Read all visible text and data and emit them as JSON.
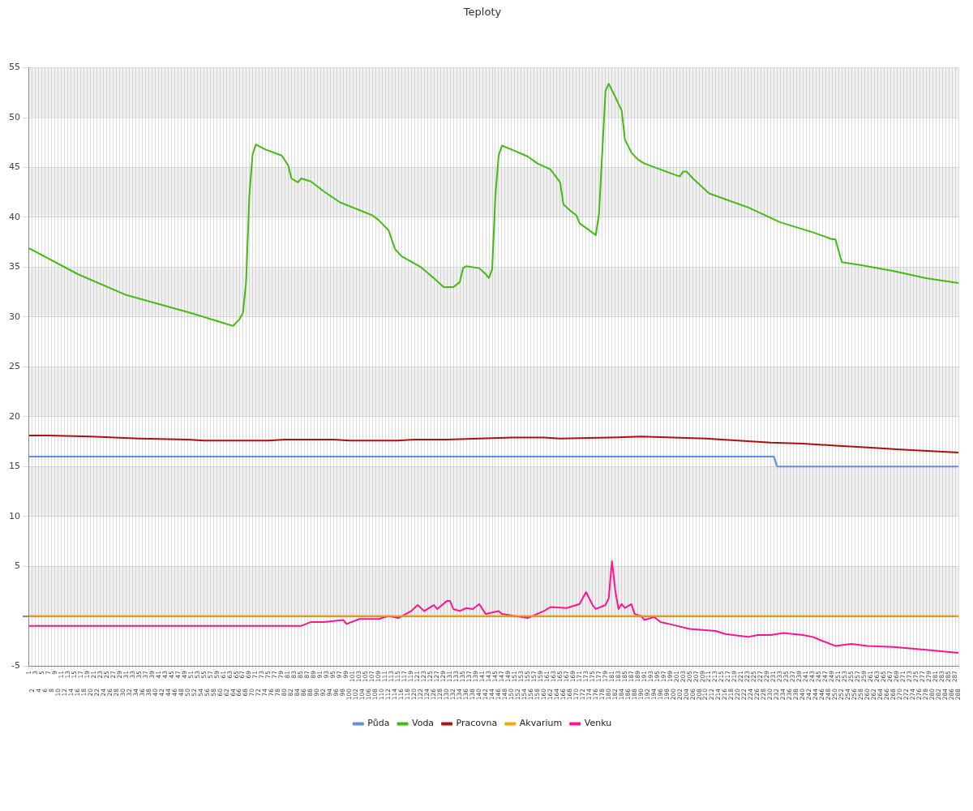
{
  "chart_data": {
    "type": "line",
    "title": "Teploty",
    "categories": [
      "1",
      "2",
      "3",
      "4",
      "5",
      "6",
      "7",
      "8",
      "9",
      "10",
      "11",
      "12",
      "13",
      "14",
      "15",
      "16",
      "17",
      "18",
      "19",
      "20",
      "21",
      "22",
      "23",
      "24",
      "25",
      "26",
      "27",
      "28",
      "29",
      "30",
      "31",
      "32",
      "33",
      "34",
      "35",
      "36",
      "37",
      "38",
      "39",
      "40",
      "41",
      "42",
      "43",
      "44",
      "45",
      "46",
      "47",
      "48",
      "49",
      "50",
      "51",
      "52",
      "53",
      "54",
      "55",
      "56",
      "57",
      "58",
      "59",
      "60",
      "61",
      "62",
      "63",
      "64",
      "65",
      "66",
      "67",
      "68",
      "69",
      "70",
      "71",
      "72",
      "73",
      "74",
      "75",
      "76",
      "77",
      "78",
      "79",
      "80",
      "81",
      "82",
      "83",
      "84",
      "85",
      "86",
      "87",
      "88",
      "89",
      "90",
      "91",
      "92",
      "93",
      "94",
      "95",
      "96",
      "97",
      "98",
      "99",
      "100",
      "101",
      "102",
      "103",
      "104",
      "105",
      "106",
      "107",
      "108",
      "109",
      "110",
      "111",
      "112",
      "113",
      "114",
      "115",
      "116",
      "117",
      "118",
      "119",
      "120",
      "121",
      "122",
      "123",
      "124",
      "125",
      "126",
      "127",
      "128",
      "129",
      "130",
      "131",
      "132",
      "133",
      "134",
      "135",
      "136",
      "137",
      "138",
      "139",
      "140",
      "141",
      "142",
      "143",
      "144",
      "145",
      "146",
      "147",
      "148",
      "149",
      "150",
      "151",
      "152",
      "153",
      "154",
      "155",
      "156",
      "157",
      "158",
      "159",
      "160",
      "161",
      "162",
      "163",
      "164",
      "165",
      "166",
      "167",
      "168",
      "169",
      "170",
      "171",
      "172",
      "173",
      "174",
      "175",
      "176",
      "177",
      "178",
      "179",
      "180",
      "181",
      "182",
      "183",
      "184",
      "185",
      "186",
      "187",
      "188",
      "189",
      "190",
      "191",
      "192",
      "193",
      "194",
      "195",
      "196",
      "197",
      "198",
      "199",
      "200",
      "201",
      "202",
      "203",
      "204",
      "205",
      "206",
      "207",
      "208",
      "209",
      "210",
      "211",
      "212",
      "213",
      "214",
      "215",
      "216",
      "217",
      "218",
      "219",
      "220",
      "221",
      "222",
      "223",
      "224",
      "225",
      "226",
      "227",
      "228",
      "229",
      "230",
      "231",
      "232",
      "233",
      "234",
      "235",
      "236",
      "237",
      "238",
      "239",
      "240",
      "241",
      "242",
      "243",
      "244",
      "245",
      "246",
      "247",
      "248",
      "249",
      "250",
      "251",
      "252",
      "253",
      "254",
      "255",
      "256",
      "257",
      "258",
      "259",
      "260",
      "261",
      "262",
      "263",
      "264",
      "265",
      "266",
      "267",
      "268",
      "269",
      "270",
      "271",
      "272",
      "273",
      "274",
      "275",
      "276",
      "277",
      "278",
      "279",
      "280",
      "281",
      "282",
      "283",
      "284",
      "285",
      "286",
      "287",
      "288"
    ],
    "series": [
      {
        "name": "Půda",
        "color": "#5b8fe0",
        "x": [
          "1",
          "231",
          "232",
          "288"
        ],
        "values": [
          16,
          16,
          15,
          15
        ]
      },
      {
        "name": "Voda",
        "color": "#44bb11",
        "x": [
          "1",
          "16",
          "31",
          "51",
          "62",
          "64",
          "66",
          "67",
          "68",
          "69",
          "70",
          "71",
          "74",
          "79",
          "81",
          "82",
          "84",
          "85",
          "88",
          "92",
          "97",
          "107",
          "109",
          "112",
          "114",
          "116",
          "122",
          "126",
          "129",
          "132",
          "134",
          "135",
          "136",
          "140",
          "142",
          "143",
          "144",
          "145",
          "146",
          "147",
          "150",
          "155",
          "158",
          "162",
          "165",
          "166",
          "168",
          "170",
          "171",
          "174",
          "176",
          "177",
          "178",
          "179",
          "180",
          "182",
          "184",
          "185",
          "187",
          "189",
          "191",
          "201",
          "202",
          "203",
          "204",
          "206",
          "211",
          "223",
          "233",
          "243",
          "249",
          "250",
          "252",
          "258",
          "268",
          "278",
          "288"
        ],
        "values": [
          36.9,
          34.3,
          32.2,
          30.4,
          29.3,
          29.1,
          29.8,
          30.4,
          33.5,
          42.2,
          46.3,
          47.3,
          46.8,
          46.2,
          45.2,
          43.9,
          43.5,
          43.9,
          43.6,
          42.6,
          41.5,
          40.2,
          39.7,
          38.7,
          36.8,
          36.1,
          35.0,
          33.9,
          33.0,
          33.0,
          33.5,
          34.9,
          35.1,
          34.9,
          34.3,
          33.9,
          34.8,
          42.2,
          46.2,
          47.2,
          46.8,
          46.1,
          45.4,
          44.8,
          43.5,
          41.3,
          40.7,
          40.2,
          39.4,
          38.7,
          38.2,
          40.4,
          46.5,
          52.7,
          53.4,
          52.1,
          50.7,
          47.8,
          46.5,
          45.8,
          45.4,
          44.2,
          44.1,
          44.6,
          44.6,
          43.9,
          42.4,
          41.0,
          39.5,
          38.5,
          37.8,
          37.8,
          35.5,
          35.2,
          34.6,
          33.9,
          33.4
        ]
      },
      {
        "name": "Pracovna",
        "color": "#aa1111",
        "x": [
          "1",
          "7",
          "20",
          "35",
          "50",
          "55",
          "75",
          "80",
          "95",
          "100",
          "115",
          "120",
          "130",
          "140",
          "150",
          "160",
          "165",
          "180",
          "190",
          "200",
          "210",
          "220",
          "230",
          "240",
          "250",
          "260",
          "270",
          "288"
        ],
        "values": [
          18.1,
          18.1,
          18.0,
          17.8,
          17.7,
          17.6,
          17.6,
          17.7,
          17.7,
          17.6,
          17.6,
          17.7,
          17.7,
          17.8,
          17.9,
          17.9,
          17.8,
          17.9,
          18.0,
          17.9,
          17.8,
          17.6,
          17.4,
          17.3,
          17.1,
          16.9,
          16.7,
          16.4
        ]
      },
      {
        "name": "Akvarium",
        "color": "#ffa500",
        "x": [
          "1",
          "288"
        ],
        "values": [
          0,
          0
        ]
      },
      {
        "name": "Venku",
        "color": "#ff1493",
        "x": [
          "1",
          "60",
          "85",
          "88",
          "92",
          "98",
          "99",
          "103",
          "109",
          "112",
          "115",
          "119",
          "121",
          "123",
          "126",
          "127",
          "130",
          "131",
          "132",
          "134",
          "136",
          "138",
          "140",
          "142",
          "146",
          "147",
          "155",
          "160",
          "162",
          "167",
          "171",
          "173",
          "175",
          "176",
          "179",
          "180",
          "181",
          "182",
          "183",
          "184",
          "185",
          "187",
          "188",
          "190",
          "191",
          "194",
          "196",
          "200",
          "205",
          "213",
          "216",
          "223",
          "226",
          "230",
          "234",
          "240",
          "243",
          "246",
          "250",
          "255",
          "260",
          "268",
          "278",
          "288"
        ],
        "values": [
          -1.0,
          -1.0,
          -1.0,
          -0.6,
          -0.6,
          -0.4,
          -0.8,
          -0.3,
          -0.3,
          0.0,
          -0.2,
          0.5,
          1.1,
          0.5,
          1.1,
          0.7,
          1.5,
          1.5,
          0.7,
          0.5,
          0.8,
          0.7,
          1.2,
          0.2,
          0.5,
          0.2,
          -0.2,
          0.5,
          0.9,
          0.8,
          1.2,
          2.4,
          1.1,
          0.7,
          1.1,
          1.8,
          5.5,
          2.6,
          0.7,
          1.2,
          0.8,
          1.2,
          0.2,
          0.0,
          -0.4,
          -0.1,
          -0.6,
          -0.9,
          -1.3,
          -1.5,
          -1.8,
          -2.1,
          -1.9,
          -1.9,
          -1.7,
          -1.9,
          -2.1,
          -2.5,
          -3.0,
          -2.8,
          -3.0,
          -3.1,
          -3.4,
          -3.7
        ]
      }
    ],
    "ylim": [
      -5,
      55
    ],
    "yticks": [
      -5,
      {
        "value": 0,
        "label": null
      },
      5,
      10,
      15,
      20,
      25,
      30,
      35,
      40,
      45,
      50,
      55
    ],
    "grid": true,
    "legend": "bottom",
    "marker": "none",
    "line_style": "solid"
  }
}
